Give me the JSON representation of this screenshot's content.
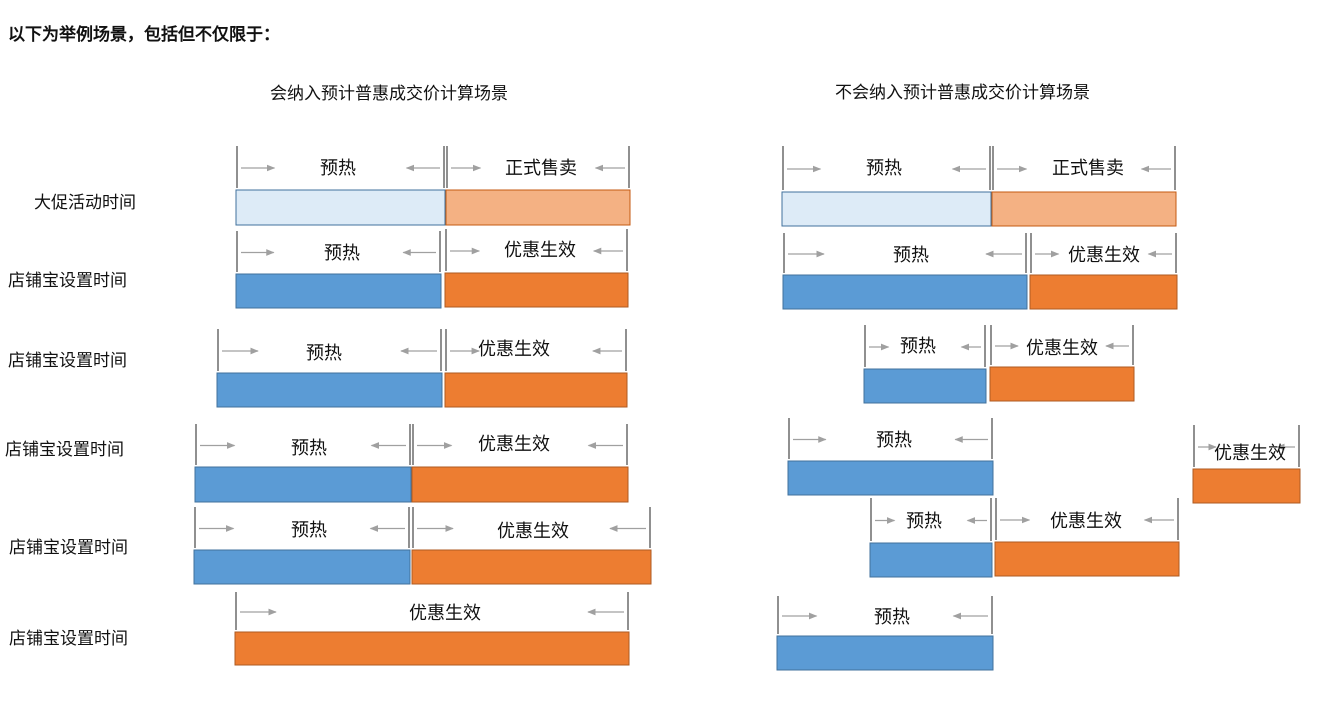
{
  "intro": "以下为举例场景，包括但不仅限于：",
  "sections": {
    "included_title": "会纳入预计普惠成交价计算场景",
    "excluded_title": "不会纳入预计普惠成交价计算场景"
  },
  "row_labels": [
    "大促活动时间",
    "店铺宝设置时间",
    "店铺宝设置时间",
    "店铺宝设置时间",
    "店铺宝设置时间",
    "店铺宝设置时间"
  ],
  "colors": {
    "warmup_light": "#ddebf7",
    "sale_light": "#f4b183",
    "warmup": "#5b9bd5",
    "active": "#ed7d31",
    "arrow": "#a0a0a0",
    "tick": "#222222"
  },
  "segments": [
    {
      "label": "预热",
      "kind": "warmup_light"
    },
    {
      "label": "正式售卖",
      "kind": "sale_light"
    },
    {
      "label": "预热",
      "kind": "warmup"
    },
    {
      "label": "优惠生效",
      "kind": "active"
    },
    {
      "label": "预热",
      "kind": "warmup"
    },
    {
      "label": "优惠生效",
      "kind": "active"
    },
    {
      "label": "预热",
      "kind": "warmup"
    },
    {
      "label": "优惠生效",
      "kind": "active"
    },
    {
      "label": "预热",
      "kind": "warmup"
    },
    {
      "label": "优惠生效",
      "kind": "active"
    },
    {
      "label": "优惠生效",
      "kind": "active"
    },
    {
      "label": "预热",
      "kind": "warmup_light"
    },
    {
      "label": "正式售卖",
      "kind": "sale_light"
    },
    {
      "label": "预热",
      "kind": "warmup"
    },
    {
      "label": "优惠生效",
      "kind": "active"
    },
    {
      "label": "预热",
      "kind": "warmup"
    },
    {
      "label": "优惠生效",
      "kind": "active"
    },
    {
      "label": "预热",
      "kind": "warmup"
    },
    {
      "label": "优惠生效",
      "kind": "active"
    },
    {
      "label": "预热",
      "kind": "warmup"
    },
    {
      "label": "优惠生效",
      "kind": "active"
    },
    {
      "label": "预热",
      "kind": "warmup"
    }
  ]
}
